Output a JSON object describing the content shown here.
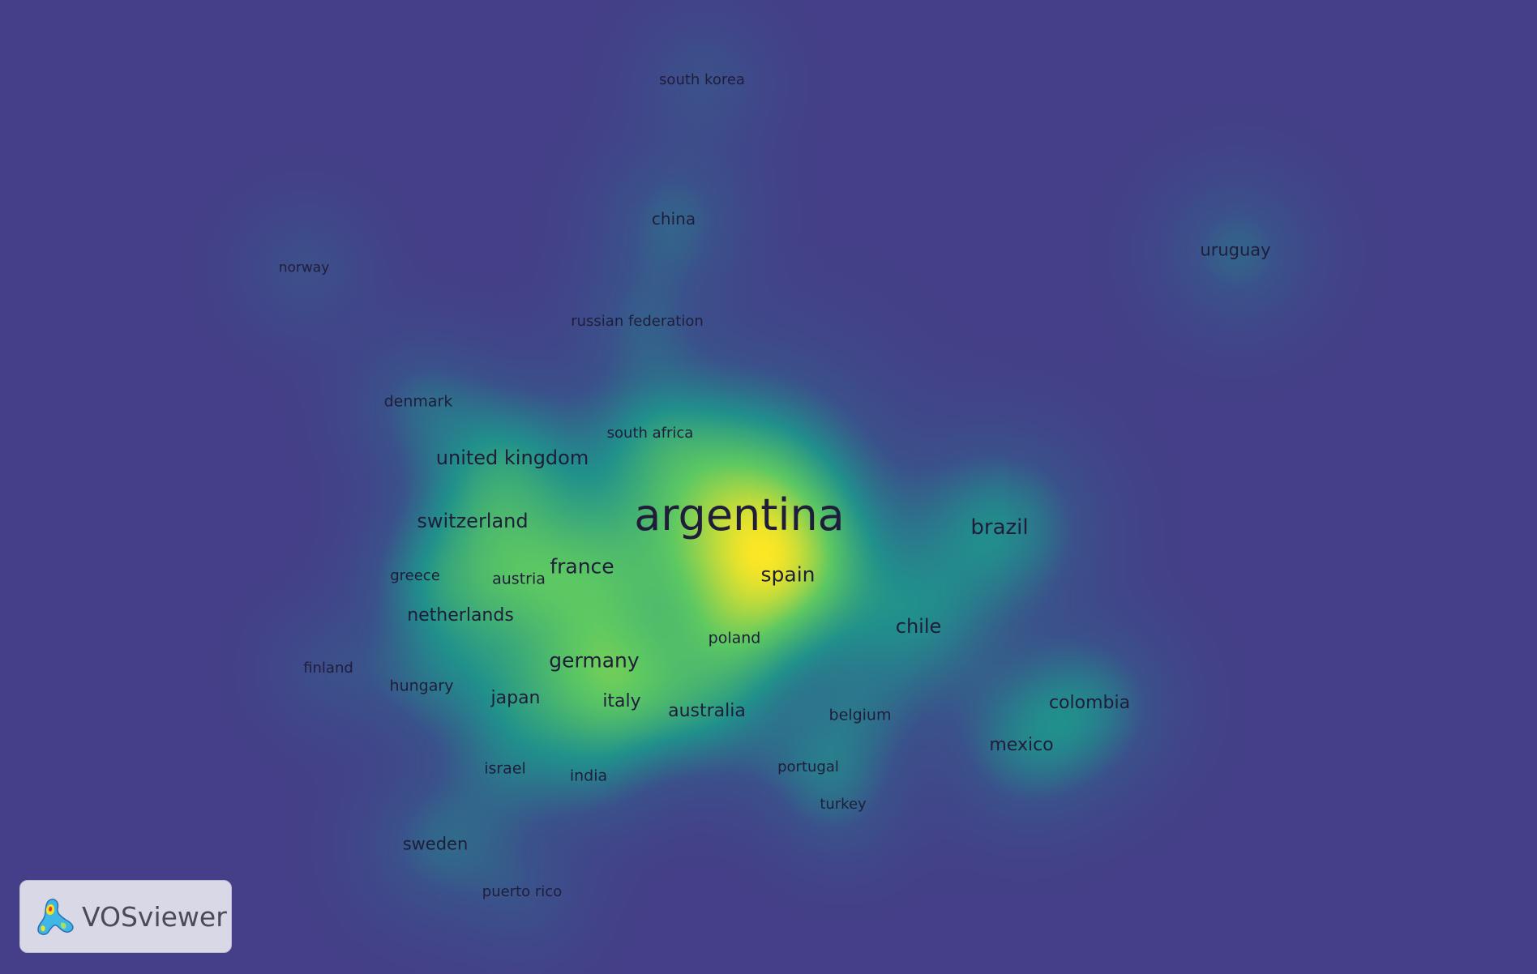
{
  "map": {
    "background": "#443f88",
    "colormap": [
      "#443f88",
      "#3b528b",
      "#21918c",
      "#5ec962",
      "#fde725"
    ]
  },
  "nodes": [
    {
      "label": "argentina",
      "weight": 1.0
    },
    {
      "label": "brazil",
      "weight": 0.5
    },
    {
      "label": "spain",
      "weight": 0.42
    },
    {
      "label": "chile",
      "weight": 0.38
    },
    {
      "label": "france",
      "weight": 0.42
    },
    {
      "label": "germany",
      "weight": 0.45
    },
    {
      "label": "united kingdom",
      "weight": 0.42
    },
    {
      "label": "switzerland",
      "weight": 0.36
    },
    {
      "label": "netherlands",
      "weight": 0.33
    },
    {
      "label": "italy",
      "weight": 0.33
    },
    {
      "label": "australia",
      "weight": 0.36
    },
    {
      "label": "japan",
      "weight": 0.3
    },
    {
      "label": "colombia",
      "weight": 0.38
    },
    {
      "label": "mexico",
      "weight": 0.36
    },
    {
      "label": "uruguay",
      "weight": 0.33
    },
    {
      "label": "china",
      "weight": 0.32
    },
    {
      "label": "sweden",
      "weight": 0.32
    },
    {
      "label": "denmark",
      "weight": 0.28
    },
    {
      "label": "south korea",
      "weight": 0.22
    },
    {
      "label": "norway",
      "weight": 0.2
    },
    {
      "label": "russian federation",
      "weight": 0.22
    },
    {
      "label": "south africa",
      "weight": 0.22
    },
    {
      "label": "greece",
      "weight": 0.2
    },
    {
      "label": "austria",
      "weight": 0.22
    },
    {
      "label": "poland",
      "weight": 0.24
    },
    {
      "label": "finland",
      "weight": 0.18
    },
    {
      "label": "hungary",
      "weight": 0.22
    },
    {
      "label": "belgium",
      "weight": 0.24
    },
    {
      "label": "israel",
      "weight": 0.22
    },
    {
      "label": "india",
      "weight": 0.22
    },
    {
      "label": "portugal",
      "weight": 0.22
    },
    {
      "label": "turkey",
      "weight": 0.2
    },
    {
      "label": "puerto rico",
      "weight": 0.2
    }
  ],
  "logo": {
    "text": "VOSviewer"
  }
}
